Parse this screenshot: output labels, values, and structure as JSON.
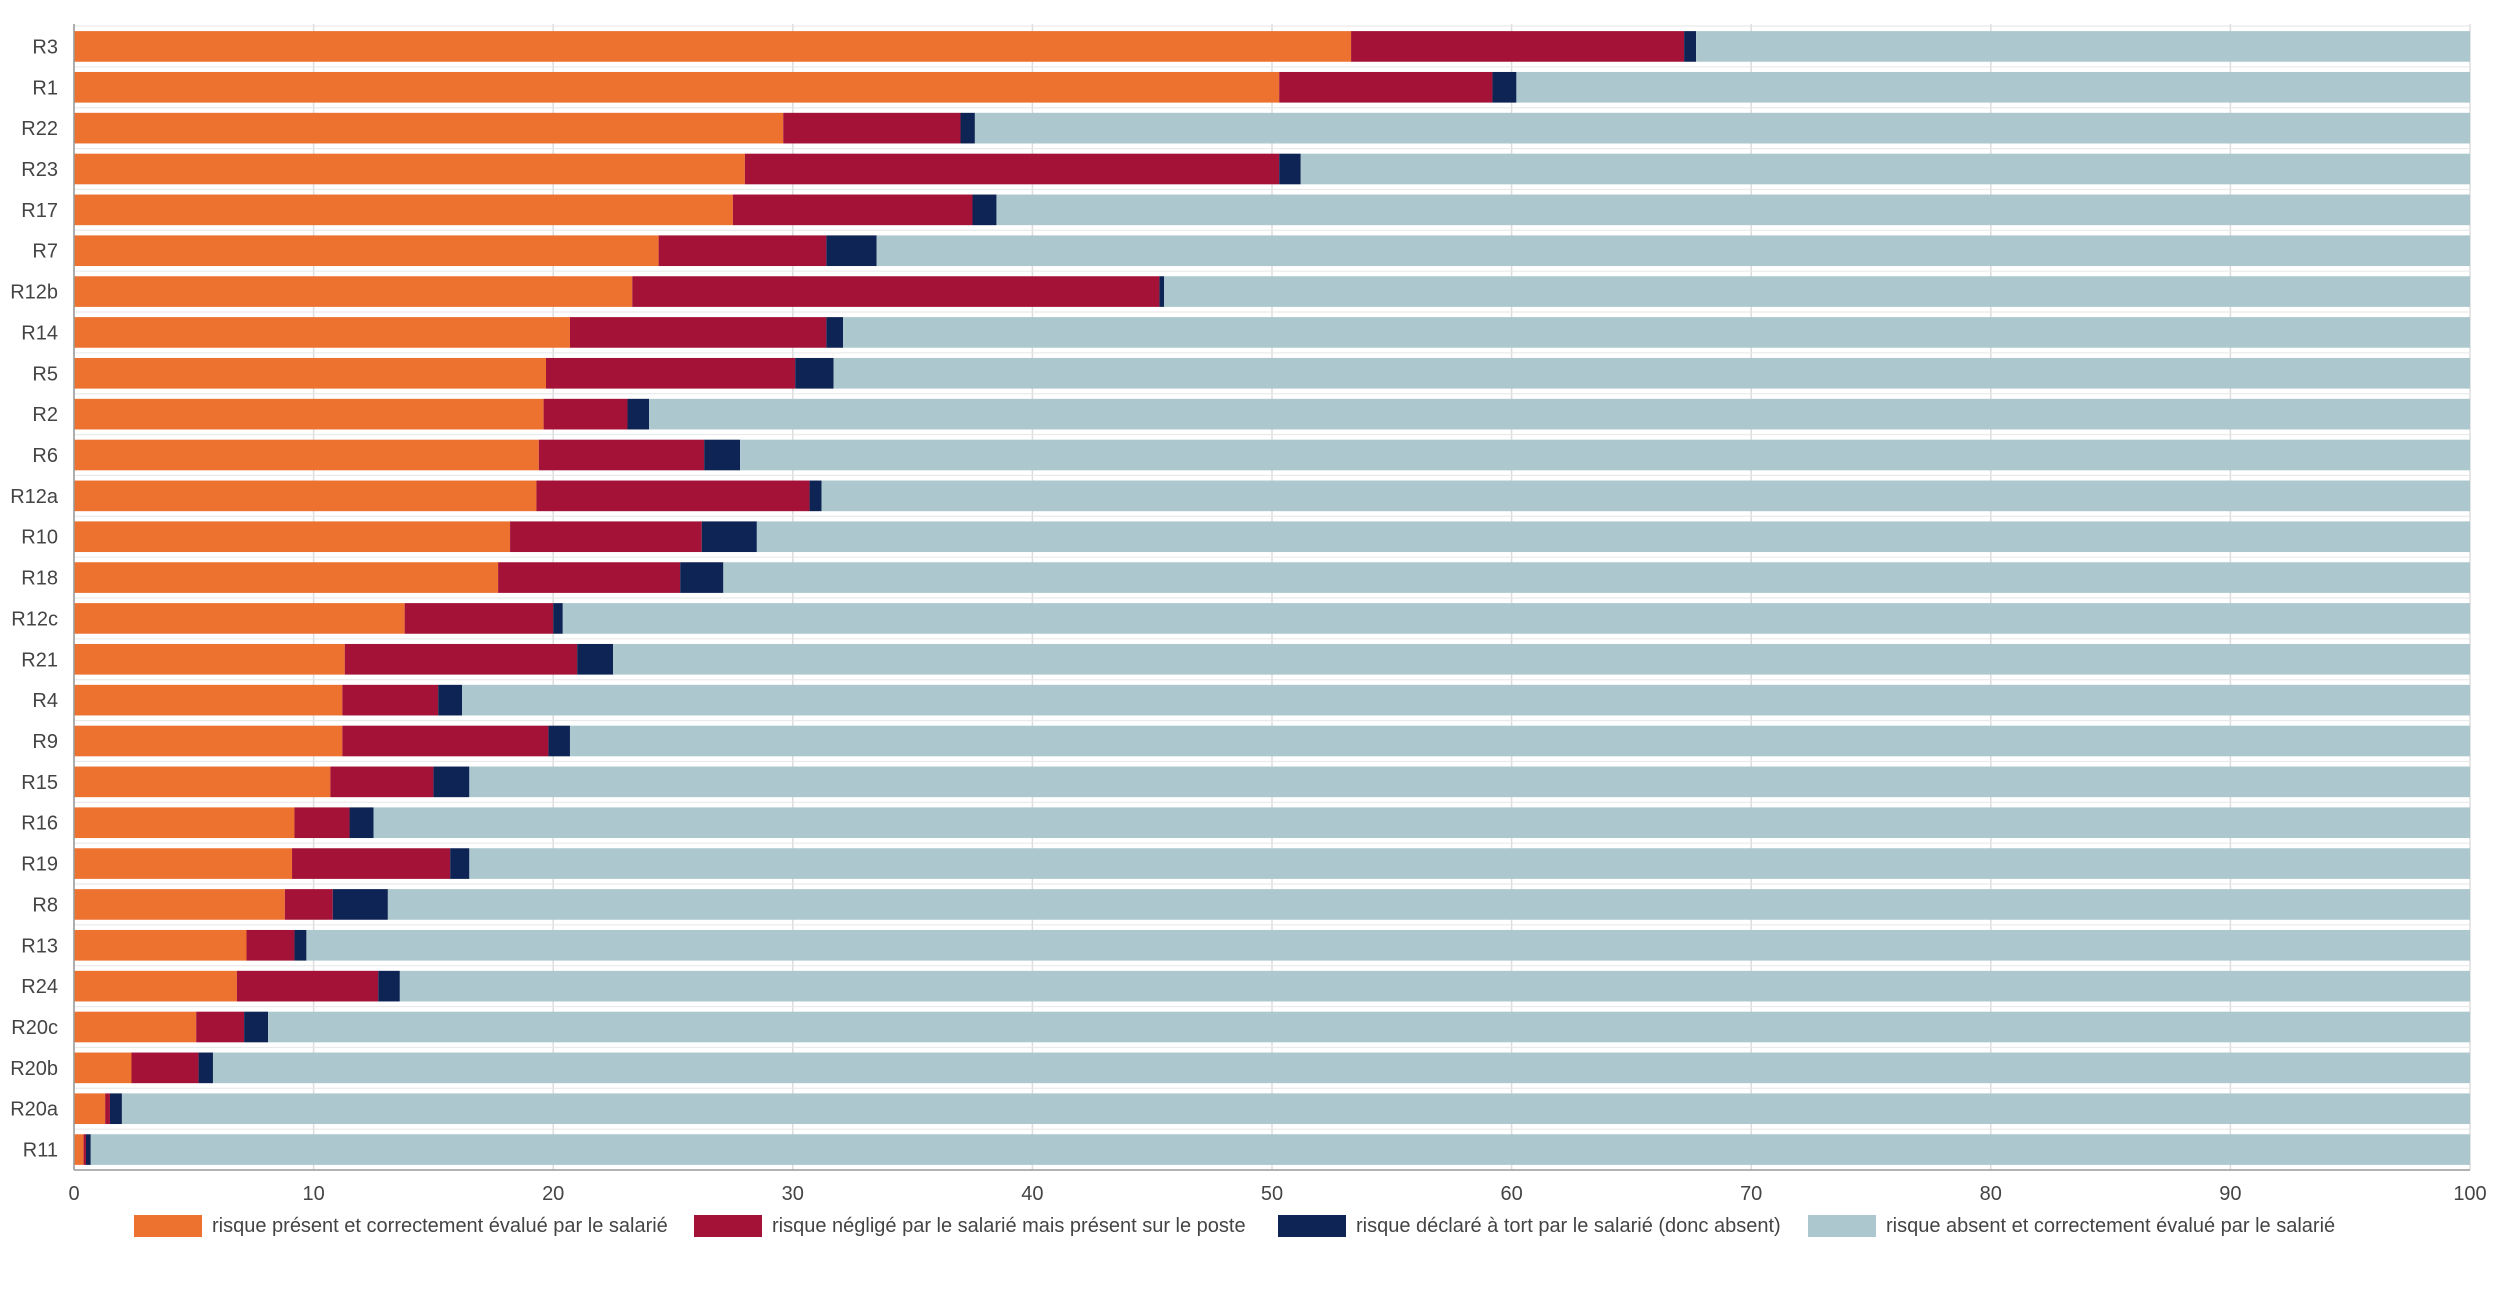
{
  "chart_data": {
    "type": "bar",
    "orientation": "horizontal",
    "stacked": true,
    "categories": [
      "R3",
      "R1",
      "R22",
      "R23",
      "R17",
      "R7",
      "R12b",
      "R14",
      "R5",
      "R2",
      "R6",
      "R12a",
      "R10",
      "R18",
      "R12c",
      "R21",
      "R4",
      "R9",
      "R15",
      "R16",
      "R19",
      "R8",
      "R13",
      "R24",
      "R20c",
      "R20b",
      "R20a",
      "R11"
    ],
    "series": [
      {
        "name": "risque présent et correctement évalué par le salarié",
        "color": "#ED7230",
        "values": [
          53.3,
          50.3,
          29.6,
          28.0,
          27.5,
          24.4,
          23.3,
          20.7,
          19.7,
          19.6,
          19.4,
          19.3,
          18.2,
          17.7,
          13.8,
          11.3,
          11.2,
          11.2,
          10.7,
          9.2,
          9.1,
          8.8,
          7.2,
          6.8,
          5.1,
          2.4,
          1.3,
          0.4
        ]
      },
      {
        "name": "risque négligé par le salarié mais présent sur le poste",
        "color": "#A41337",
        "values": [
          13.9,
          8.9,
          7.4,
          22.3,
          10.0,
          7.0,
          22.0,
          10.7,
          10.4,
          3.5,
          6.9,
          11.4,
          8.0,
          7.6,
          6.2,
          9.7,
          4.0,
          8.6,
          4.3,
          2.3,
          6.6,
          2.0,
          2.0,
          5.9,
          2.0,
          2.8,
          0.2,
          0.1
        ]
      },
      {
        "name": "risque déclaré à tort par le salarié (donc absent)",
        "color": "#0E2454",
        "values": [
          0.5,
          1.0,
          0.6,
          0.9,
          1.0,
          2.1,
          0.2,
          0.7,
          1.6,
          0.9,
          1.5,
          0.5,
          2.3,
          1.8,
          0.4,
          1.5,
          1.0,
          0.9,
          1.5,
          1.0,
          0.8,
          2.3,
          0.5,
          0.9,
          1.0,
          0.6,
          0.5,
          0.2
        ]
      },
      {
        "name": "risque absent et correctement évalué par le salarié",
        "color": "#ACC8CE",
        "values": [
          32.3,
          39.8,
          62.4,
          48.8,
          61.5,
          66.5,
          54.5,
          67.9,
          68.3,
          76.0,
          72.2,
          68.8,
          71.5,
          72.9,
          79.6,
          77.5,
          83.8,
          79.3,
          83.5,
          87.5,
          83.5,
          86.9,
          90.3,
          86.4,
          91.9,
          94.2,
          98.0,
          99.3
        ]
      }
    ],
    "xlim": [
      0,
      100
    ],
    "xticks": [
      "0",
      "10",
      "20",
      "30",
      "40",
      "50",
      "60",
      "70",
      "80",
      "90",
      "100"
    ],
    "grid": true,
    "legend_position": "bottom"
  }
}
